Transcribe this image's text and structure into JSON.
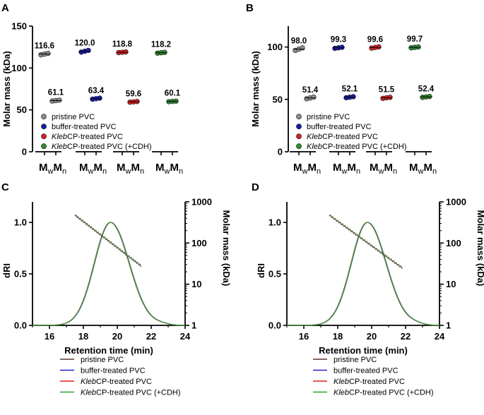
{
  "colors": {
    "pristine": "#8c8c8c",
    "buffer": "#1a1aa6",
    "kleb": "#d62020",
    "klebcdh": "#2e8b2e",
    "line_pristine": "#5a3a2a",
    "line_buffer": "#2020d0",
    "line_kleb": "#e02020",
    "line_klebcdh": "#30a030",
    "axis": "#000000"
  },
  "panels": {
    "A": {
      "letter": "A"
    },
    "B": {
      "letter": "B"
    },
    "C": {
      "letter": "C"
    },
    "D": {
      "letter": "D"
    }
  },
  "mw_label": "M",
  "mw_sub": "w",
  "mn_label": "M",
  "mn_sub": "n",
  "chart_data": [
    {
      "id": "A",
      "type": "scatter",
      "title": "",
      "ylabel": "Molar mass (kDa)",
      "ylim": [
        0,
        150
      ],
      "yticks": [
        0,
        50,
        100,
        150
      ],
      "categories": [
        "pristine PVC",
        "buffer-treated PVC",
        "KlebCP-treated PVC",
        "KlebCP-treated PVC (+CDH)"
      ],
      "series": [
        {
          "name": "pristine PVC",
          "color_key": "pristine",
          "mw": 116.6,
          "mn": 61.1,
          "mw_label": "116.6",
          "mn_label": "61.1",
          "mw_points": [
            115.8,
            116.6,
            117.4
          ],
          "mn_points": [
            60.6,
            61.1,
            61.6
          ]
        },
        {
          "name": "buffer-treated PVC",
          "color_key": "buffer",
          "mw": 120.0,
          "mn": 63.4,
          "mw_label": "120.0",
          "mn_label": "63.4",
          "mw_points": [
            119.0,
            120.0,
            121.0
          ],
          "mn_points": [
            62.8,
            63.4,
            64.0
          ]
        },
        {
          "name": "KlebCP-treated PVC",
          "color_key": "kleb",
          "mw": 118.8,
          "mn": 59.6,
          "mw_label": "118.8",
          "mn_label": "59.6",
          "mw_points": [
            118.4,
            118.8,
            119.2
          ],
          "mn_points": [
            59.2,
            59.6,
            60.0
          ]
        },
        {
          "name": "KlebCP-treated PVC (+CDH)",
          "color_key": "klebcdh",
          "mw": 118.2,
          "mn": 60.1,
          "mw_label": "118.2",
          "mn_label": "60.1",
          "mw_points": [
            117.8,
            118.2,
            118.6
          ],
          "mn_points": [
            59.8,
            60.1,
            60.4
          ]
        }
      ]
    },
    {
      "id": "B",
      "type": "scatter",
      "title": "",
      "ylabel": "Molar mass (kDa)",
      "ylim": [
        0,
        120
      ],
      "yticks": [
        0,
        50,
        100
      ],
      "categories": [
        "pristine PVC",
        "buffer-treated PVC",
        "KlebCP-treated PVC",
        "KlebCP-treated PVC (+CDH)"
      ],
      "series": [
        {
          "name": "pristine PVC",
          "color_key": "pristine",
          "mw": 98.0,
          "mn": 51.4,
          "mw_label": "98.0",
          "mn_label": "51.4",
          "mw_points": [
            96.8,
            98.0,
            99.2
          ],
          "mn_points": [
            50.6,
            51.4,
            52.2
          ]
        },
        {
          "name": "buffer-treated PVC",
          "color_key": "buffer",
          "mw": 99.3,
          "mn": 52.1,
          "mw_label": "99.3",
          "mn_label": "52.1",
          "mw_points": [
            98.8,
            99.3,
            99.8
          ],
          "mn_points": [
            51.6,
            52.1,
            52.6
          ]
        },
        {
          "name": "KlebCP-treated PVC",
          "color_key": "kleb",
          "mw": 99.6,
          "mn": 51.5,
          "mw_label": "99.6",
          "mn_label": "51.5",
          "mw_points": [
            99.0,
            99.6,
            100.2
          ],
          "mn_points": [
            51.0,
            51.5,
            52.0
          ]
        },
        {
          "name": "KlebCP-treated PVC (+CDH)",
          "color_key": "klebcdh",
          "mw": 99.7,
          "mn": 52.4,
          "mw_label": "99.7",
          "mn_label": "52.4",
          "mw_points": [
            99.3,
            99.7,
            100.1
          ],
          "mn_points": [
            52.0,
            52.4,
            52.8
          ]
        }
      ]
    },
    {
      "id": "C",
      "type": "line",
      "xlabel": "Retention time (min)",
      "ylabel": "dRI",
      "y2label": "Molar mass (kDa)",
      "xlim": [
        15,
        24
      ],
      "xticks": [
        16,
        18,
        20,
        22,
        24
      ],
      "ylim": [
        0,
        1.2
      ],
      "yticks": [
        0.0,
        0.5,
        1.0
      ],
      "ytick_labels": [
        "0.0",
        "0.5",
        "1.0"
      ],
      "y2lim": [
        1,
        1000
      ],
      "y2ticks": [
        1,
        10,
        100,
        1000
      ],
      "y2tick_labels": [
        "1",
        "10",
        "100",
        "1000"
      ],
      "peak_x": 19.6,
      "peak_sigma_left": 0.95,
      "peak_sigma_right": 1.1,
      "mass_line": {
        "x": [
          17.5,
          21.4
        ],
        "y": [
          480,
          28
        ]
      },
      "legend": [
        "pristine PVC",
        "buffer-treated PVC",
        "KlebCP-treated PVC",
        "KlebCP-treated PVC (+CDH)"
      ]
    },
    {
      "id": "D",
      "type": "line",
      "xlabel": "Retention time (min)",
      "ylabel": "dRI",
      "y2label": "Molar mass (kDa)",
      "xlim": [
        15,
        24
      ],
      "xticks": [
        16,
        18,
        20,
        22,
        24
      ],
      "ylim": [
        0,
        1.2
      ],
      "yticks": [
        0.0,
        0.5,
        1.0
      ],
      "ytick_labels": [
        "0.0",
        "0.5",
        "1.0"
      ],
      "y2lim": [
        1,
        1000
      ],
      "y2ticks": [
        1,
        10,
        100,
        1000
      ],
      "y2tick_labels": [
        "1",
        "10",
        "100",
        "1000"
      ],
      "peak_x": 19.75,
      "peak_sigma_left": 0.95,
      "peak_sigma_right": 1.1,
      "mass_line": {
        "x": [
          17.5,
          21.8
        ],
        "y": [
          480,
          25
        ]
      },
      "legend": [
        "pristine PVC",
        "buffer-treated PVC",
        "KlebCP-treated PVC",
        "KlebCP-treated PVC (+CDH)"
      ]
    }
  ]
}
